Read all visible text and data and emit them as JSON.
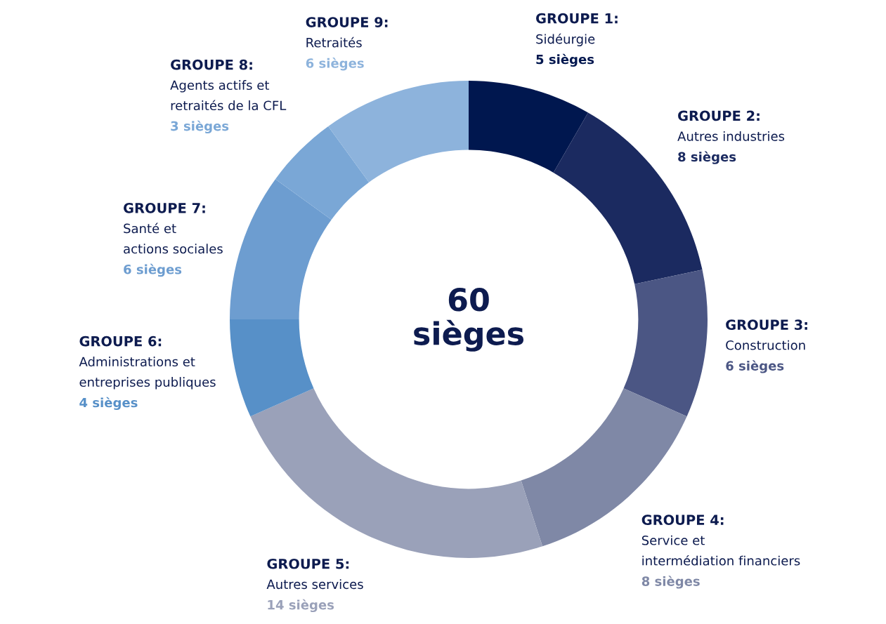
{
  "chart_data": {
    "type": "donut",
    "categories": [
      "GROUPE 1:\nSidéurgie",
      "GROUPE 2:\nAutres industries",
      "GROUPE 3:\nConstruction",
      "GROUPE 4:\nService et\nintermédiation financiers",
      "GROUPE 5:\nAutres services",
      "GROUPE 6:\nAdministrations et\nentreprises publiques",
      "GROUPE 7:\nSanté et\nactions sociales",
      "GROUPE 8:\nAgents actifs et\nretraités de la CFL",
      "GROUPE 9:\nRetraités"
    ],
    "values": [
      5,
      8,
      6,
      8,
      14,
      4,
      6,
      3,
      6
    ],
    "value_labels": [
      "5 sièges",
      "8 sièges",
      "6 sièges",
      "8 sièges",
      "14 sièges",
      "4 sièges",
      "6 sièges",
      "3 sièges",
      "6 sièges"
    ],
    "colors": [
      "#00174f",
      "#1b2a60",
      "#4b5684",
      "#7f88a6",
      "#9aa1b9",
      "#5790c8",
      "#6d9dd0",
      "#7aa7d6",
      "#8db3dc"
    ],
    "annotations": [
      "60\nsièges"
    ]
  }
}
